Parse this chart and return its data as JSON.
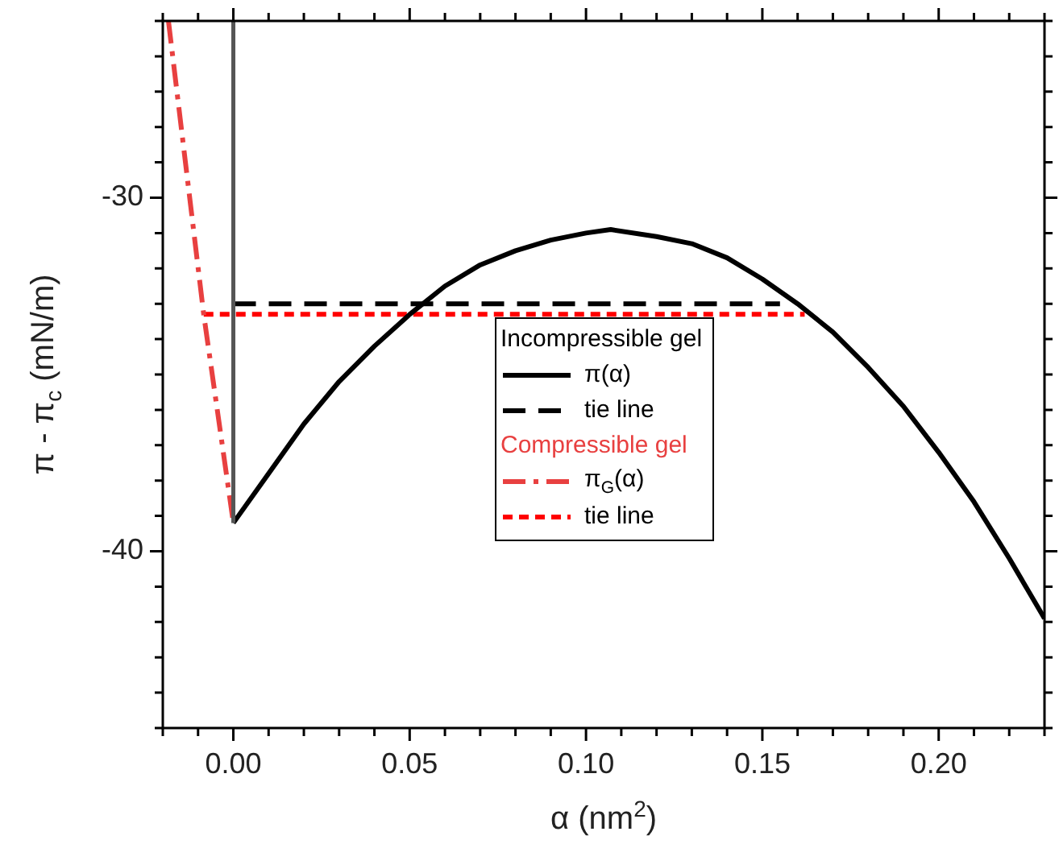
{
  "chart_data": {
    "type": "line",
    "xlabel": "α (nm$^{2}$)",
    "ylabel": "π - π$_{c}$ (mN/m)",
    "xlim": [
      -0.02,
      0.23
    ],
    "ylim": [
      -45,
      -25
    ],
    "xticks": [
      {
        "value": -0.02,
        "label": null
      },
      {
        "value": -0.01,
        "label": null
      },
      {
        "value": 0,
        "label": "0.00"
      },
      {
        "value": 0.01,
        "label": null
      },
      {
        "value": 0.02,
        "label": null
      },
      {
        "value": 0.03,
        "label": null
      },
      {
        "value": 0.04,
        "label": null
      },
      {
        "value": 0.05,
        "label": "0.05"
      },
      {
        "value": 0.06,
        "label": null
      },
      {
        "value": 0.07,
        "label": null
      },
      {
        "value": 0.08,
        "label": null
      },
      {
        "value": 0.09,
        "label": null
      },
      {
        "value": 0.1,
        "label": "0.10"
      },
      {
        "value": 0.11,
        "label": null
      },
      {
        "value": 0.12,
        "label": null
      },
      {
        "value": 0.13,
        "label": null
      },
      {
        "value": 0.14,
        "label": null
      },
      {
        "value": 0.15,
        "label": "0.15"
      },
      {
        "value": 0.16,
        "label": null
      },
      {
        "value": 0.17,
        "label": null
      },
      {
        "value": 0.18,
        "label": null
      },
      {
        "value": 0.19,
        "label": null
      },
      {
        "value": 0.2,
        "label": "0.20"
      },
      {
        "value": 0.21,
        "label": null
      },
      {
        "value": 0.22,
        "label": null
      },
      {
        "value": 0.23,
        "label": null
      }
    ],
    "yticks": [
      {
        "value": -45,
        "label": null
      },
      {
        "value": -44,
        "label": null
      },
      {
        "value": -43,
        "label": null
      },
      {
        "value": -42,
        "label": null
      },
      {
        "value": -41,
        "label": null
      },
      -40,
      {
        "value": -39,
        "label": null
      },
      {
        "value": -38,
        "label": null
      },
      {
        "value": -37,
        "label": null
      },
      {
        "value": -36,
        "label": null
      },
      {
        "value": -35,
        "label": null
      },
      {
        "value": -34,
        "label": null
      },
      {
        "value": -33,
        "label": null
      },
      {
        "value": -32,
        "label": null
      },
      {
        "value": -31,
        "label": null
      },
      -30,
      {
        "value": -29,
        "label": null
      },
      {
        "value": -28,
        "label": null
      },
      {
        "value": -27,
        "label": null
      },
      {
        "value": -26,
        "label": null
      },
      {
        "value": -25,
        "label": null
      }
    ],
    "grid": false,
    "legend": "center",
    "marker": "none",
    "annotations": [
      "Incompressible gel",
      "Compressible gel"
    ],
    "series": [
      {
        "color": "#555555",
        "line_style": "solid",
        "x": [
          0,
          0
        ],
        "values": [
          -39.2,
          -25
        ]
      },
      {
        "name": "π(α)",
        "color": "#000000",
        "line_style": "solid",
        "x": [
          0,
          0.01,
          0.02,
          0.03,
          0.04,
          0.05,
          0.06,
          0.07,
          0.08,
          0.09,
          0.1,
          0.107,
          0.12,
          0.13,
          0.14,
          0.15,
          0.16,
          0.17,
          0.18,
          0.19,
          0.2,
          0.21,
          0.22,
          0.23
        ],
        "values": [
          -39.2,
          -37.8,
          -36.4,
          -35.2,
          -34.2,
          -33.3,
          -32.5,
          -31.9,
          -31.5,
          -31.2,
          -31.0,
          -30.9,
          -31.1,
          -31.3,
          -31.7,
          -32.3,
          -33.0,
          -33.8,
          -34.8,
          -35.9,
          -37.2,
          -38.6,
          -40.2,
          -41.9
        ]
      },
      {
        "name": "tie line",
        "color": "#000000",
        "line_style": "dashed",
        "x": [
          0,
          0.155
        ],
        "values": [
          -33.0,
          -33.0
        ]
      },
      {
        "name": "π$_{G}$(α)",
        "color": "#e84040",
        "line_style": "dashdot",
        "x": [
          -0.0184,
          -0.0084,
          0
        ],
        "values": [
          -25,
          -33.3,
          -39.2
        ]
      },
      {
        "name": "tie line",
        "color": "#ff0000",
        "line_style": "dotted",
        "x": [
          -0.0084,
          0.162
        ],
        "values": [
          -33.3,
          -33.3
        ]
      }
    ]
  }
}
